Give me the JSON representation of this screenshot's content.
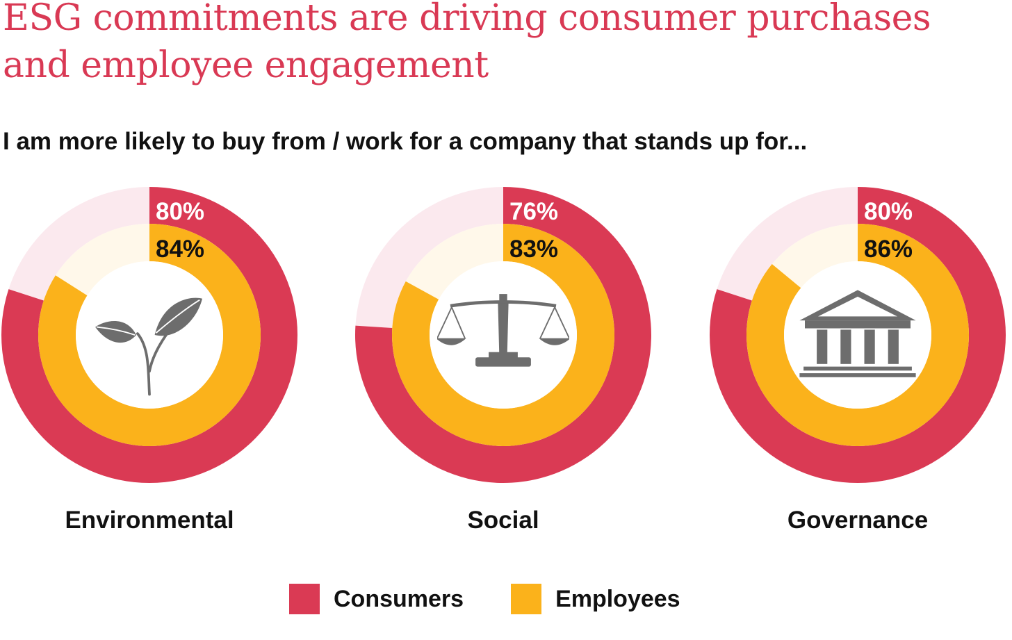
{
  "title": "ESG commitments are driving consumer purchases and employee engagement",
  "subtitle": "I am more likely to buy from / work for a company that stands up for...",
  "colors": {
    "title": "#d93954",
    "consumers": "#da3a54",
    "employees": "#fbb21b",
    "consumers_remainder": "#fbe9ee",
    "employees_remainder": "#fff8ea",
    "icon": "#6d6d6d"
  },
  "chart_data": {
    "type": "donut",
    "categories": [
      "Environmental",
      "Social",
      "Governance"
    ],
    "icons": [
      "leaf-sprout-icon",
      "scales-icon",
      "bank-building-icon"
    ],
    "series": [
      {
        "name": "Consumers",
        "values": [
          80,
          76,
          80
        ],
        "labels": [
          "80%",
          "76%",
          "80%"
        ]
      },
      {
        "name": "Employees",
        "values": [
          84,
          83,
          86
        ],
        "labels": [
          "84%",
          "83%",
          "86%"
        ]
      }
    ],
    "unit": "%",
    "legend_position": "bottom"
  },
  "legend": {
    "consumers_label": "Consumers",
    "employees_label": "Employees"
  }
}
